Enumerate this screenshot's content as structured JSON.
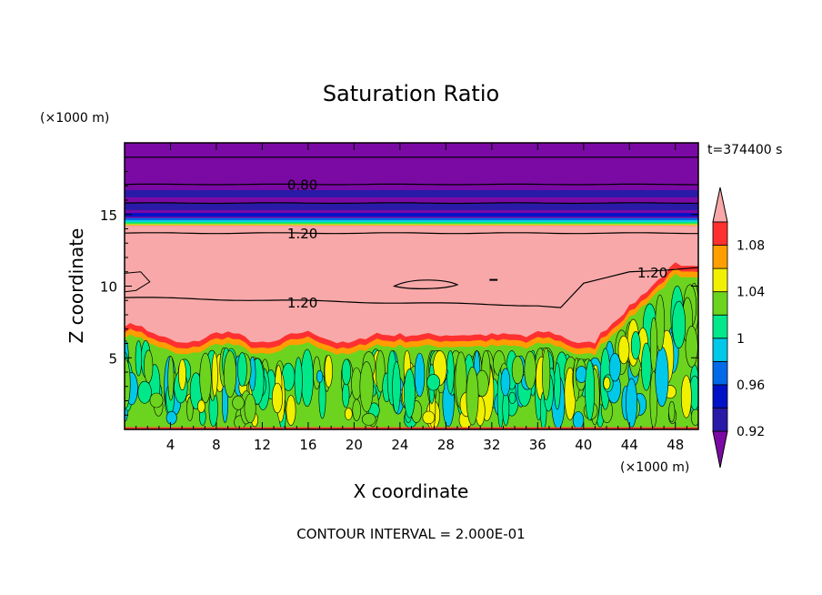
{
  "chart_data": {
    "type": "heatmap",
    "title": "Saturation Ratio",
    "xlabel": "X coordinate",
    "ylabel": "Z coordinate",
    "x_unit_label": "(×1000 m)",
    "y_unit_label": "(×1000 m)",
    "time_label": "t=374400 s",
    "footer": "CONTOUR INTERVAL = 2.000E-01",
    "xlim": [
      0,
      50
    ],
    "ylim": [
      0,
      20
    ],
    "x_ticks": [
      4,
      8,
      12,
      16,
      20,
      24,
      28,
      32,
      36,
      40,
      44,
      48
    ],
    "y_ticks": [
      5,
      10,
      15
    ],
    "colorbar": {
      "levels": [
        0.92,
        0.94,
        0.96,
        0.98,
        1.0,
        1.02,
        1.04,
        1.06,
        1.08,
        1.1
      ],
      "tick_labels": [
        {
          "value": 0.92,
          "label": "0.92"
        },
        {
          "value": 0.96,
          "label": "0.96"
        },
        {
          "value": 1.0,
          "label": "1"
        },
        {
          "value": 1.04,
          "label": "1.04"
        },
        {
          "value": 1.08,
          "label": "1.08"
        }
      ],
      "colors": [
        "#7B0AA4",
        "#2A1AA8",
        "#0012C8",
        "#006AE8",
        "#00C8E8",
        "#00E88A",
        "#6CD41E",
        "#F0F000",
        "#FF9E00",
        "#FF3030",
        "#F8A8A8"
      ]
    },
    "bands": [
      {
        "z_min": 14.6,
        "z_max": 20.0,
        "level": "below 0.92",
        "color": "#7B0AA4"
      },
      {
        "z_min": 14.2,
        "z_max": 14.6,
        "level": "0.92-1.10 transition",
        "color": "#00C8E8"
      },
      {
        "z_min": 5.5,
        "z_max": 14.2,
        "level": "above 1.10",
        "color": "#F8A8A8"
      },
      {
        "z_min": 0.0,
        "z_max": 5.5,
        "level": "about 1.00",
        "color": "#6CD41E"
      }
    ],
    "contour_labels": [
      {
        "x": 15.5,
        "z": 17.1,
        "label": "0.80"
      },
      {
        "x": 15.5,
        "z": 13.7,
        "label": "1.20"
      },
      {
        "x": 15.5,
        "z": 8.9,
        "label": "1.20"
      },
      {
        "x": 46.0,
        "z": 11.0,
        "label": "1.20"
      }
    ]
  }
}
